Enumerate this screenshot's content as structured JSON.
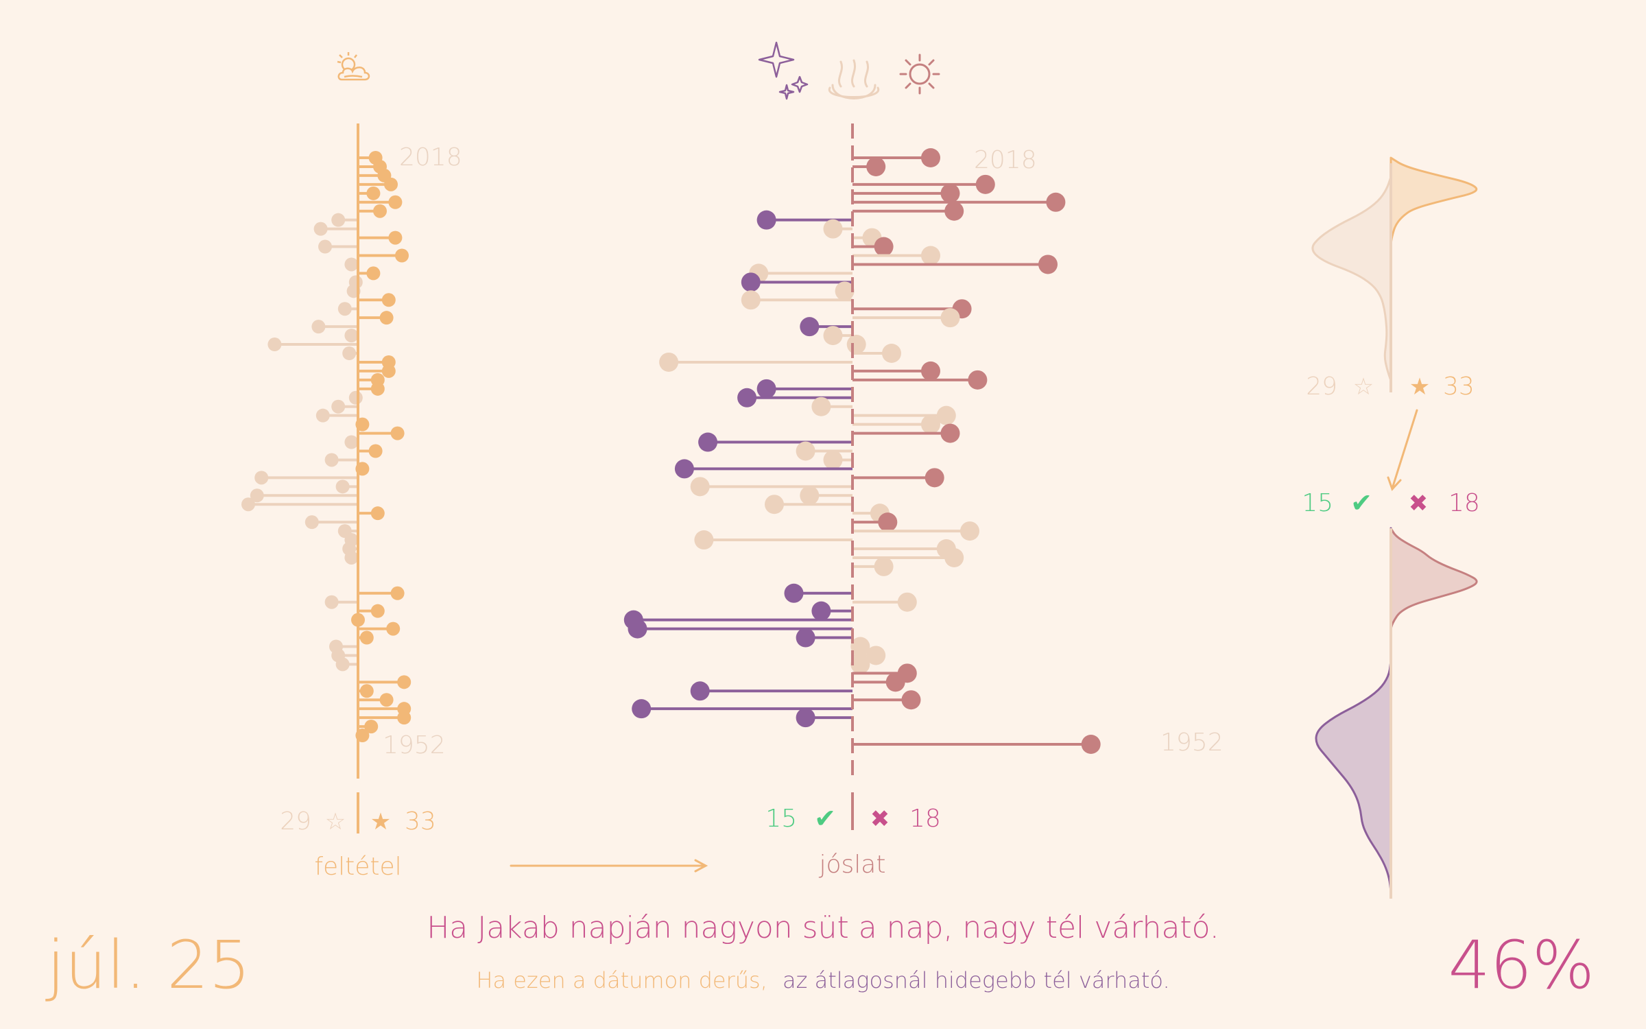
{
  "date_label": "júl. 25",
  "percent_label": "46%",
  "proverb": "Ha Jakab napján nagyon süt a nap, nagy tél várható.",
  "explanation": {
    "condition_part": "Ha ezen a dátumon derűs,",
    "prediction_part": "az átlagosnál hidegebb tél várható."
  },
  "colors": {
    "background": "#fdf3ea",
    "condition_active": "#f2b877",
    "inactive": "#ecd2bd",
    "year_label": "#e9d3c2",
    "prediction_cold": "#8c5f9a",
    "prediction_warm": "#c58080",
    "correct": "#4ecb82",
    "wrong": "#c8508c",
    "footer_condition": "#f2b877",
    "footer_prediction": "#8c5f9a",
    "title": "#c8508c"
  },
  "icons": {
    "condition_icon": "sun-behind-cloud-icon",
    "prediction_icons": [
      "sparkles-icon",
      "hot-spring-icon",
      "sun-icon"
    ]
  },
  "condition_panel": {
    "label": "feltétel",
    "year_top": "2018",
    "year_bottom": "1952",
    "count_not_met": "29",
    "count_met": "33",
    "star_empty": "☆",
    "star_filled": "★"
  },
  "prediction_panel": {
    "label": "jóslat",
    "year_top": "2018",
    "year_bottom": "1952",
    "count_correct": "15",
    "count_wrong": "18",
    "check_mark": "✔",
    "cross_mark": "✖"
  },
  "distribution_panel": {
    "count_not_met": "29",
    "count_met": "33",
    "star_empty": "☆",
    "star_filled": "★",
    "count_correct": "15",
    "count_wrong": "18",
    "check_mark": "✔",
    "cross_mark": "✖"
  },
  "chart_data": [
    {
      "type": "lollipop",
      "id": "condition",
      "x_unit": "deviation",
      "years_range": [
        1952,
        2018
      ],
      "points": [
        {
          "year": 2018,
          "value": 0.8,
          "met": true
        },
        {
          "year": 2017,
          "value": 1.0,
          "met": true
        },
        {
          "year": 2016,
          "value": 1.2,
          "met": true
        },
        {
          "year": 2015,
          "value": 1.5,
          "met": true
        },
        {
          "year": 2014,
          "value": 0.7,
          "met": true
        },
        {
          "year": 2013,
          "value": 1.7,
          "met": true
        },
        {
          "year": 2012,
          "value": 1.0,
          "met": true
        },
        {
          "year": 2011,
          "value": -0.9,
          "met": false
        },
        {
          "year": 2010,
          "value": -1.7,
          "met": false
        },
        {
          "year": 2009,
          "value": 1.7,
          "met": true
        },
        {
          "year": 2008,
          "value": -1.5,
          "met": false
        },
        {
          "year": 2007,
          "value": 2.0,
          "met": true
        },
        {
          "year": 2006,
          "value": -0.3,
          "met": false
        },
        {
          "year": 2005,
          "value": 0.7,
          "met": true
        },
        {
          "year": 2004,
          "value": -0.1,
          "met": false
        },
        {
          "year": 2003,
          "value": -0.2,
          "met": false
        },
        {
          "year": 2002,
          "value": 1.4,
          "met": true
        },
        {
          "year": 2001,
          "value": -0.6,
          "met": false
        },
        {
          "year": 2000,
          "value": 1.3,
          "met": true
        },
        {
          "year": 1999,
          "value": -1.8,
          "met": false
        },
        {
          "year": 1998,
          "value": -0.3,
          "met": false
        },
        {
          "year": 1997,
          "value": -3.8,
          "met": false
        },
        {
          "year": 1996,
          "value": -0.4,
          "met": false
        },
        {
          "year": 1995,
          "value": 1.4,
          "met": true
        },
        {
          "year": 1994,
          "value": 1.4,
          "met": true
        },
        {
          "year": 1993,
          "value": 0.9,
          "met": true
        },
        {
          "year": 1992,
          "value": 0.9,
          "met": true
        },
        {
          "year": 1991,
          "value": -0.1,
          "met": false
        },
        {
          "year": 1990,
          "value": -0.9,
          "met": false
        },
        {
          "year": 1989,
          "value": -1.6,
          "met": false
        },
        {
          "year": 1988,
          "value": 0.2,
          "met": true
        },
        {
          "year": 1987,
          "value": 1.8,
          "met": true
        },
        {
          "year": 1986,
          "value": -0.3,
          "met": false
        },
        {
          "year": 1985,
          "value": 0.8,
          "met": true
        },
        {
          "year": 1984,
          "value": -1.2,
          "met": false
        },
        {
          "year": 1983,
          "value": 0.2,
          "met": true
        },
        {
          "year": 1982,
          "value": -4.4,
          "met": false
        },
        {
          "year": 1981,
          "value": -0.7,
          "met": false
        },
        {
          "year": 1980,
          "value": -4.6,
          "met": false
        },
        {
          "year": 1979,
          "value": -5.0,
          "met": false
        },
        {
          "year": 1978,
          "value": 0.9,
          "met": true
        },
        {
          "year": 1977,
          "value": -2.1,
          "met": false
        },
        {
          "year": 1976,
          "value": -0.6,
          "met": false
        },
        {
          "year": 1975,
          "value": -0.3,
          "met": false
        },
        {
          "year": 1974,
          "value": -0.4,
          "met": false
        },
        {
          "year": 1973,
          "value": -0.3,
          "met": false
        },
        {
          "year": 1969,
          "value": 1.8,
          "met": true
        },
        {
          "year": 1968,
          "value": -1.2,
          "met": false
        },
        {
          "year": 1967,
          "value": 0.9,
          "met": true
        },
        {
          "year": 1966,
          "value": 0.0,
          "met": true
        },
        {
          "year": 1965,
          "value": 1.6,
          "met": true
        },
        {
          "year": 1964,
          "value": 0.4,
          "met": true
        },
        {
          "year": 1963,
          "value": -1.0,
          "met": false
        },
        {
          "year": 1962,
          "value": -0.9,
          "met": false
        },
        {
          "year": 1961,
          "value": -0.7,
          "met": false
        },
        {
          "year": 1959,
          "value": 2.1,
          "met": true
        },
        {
          "year": 1958,
          "value": 0.4,
          "met": true
        },
        {
          "year": 1957,
          "value": 1.3,
          "met": true
        },
        {
          "year": 1956,
          "value": 2.1,
          "met": true
        },
        {
          "year": 1955,
          "value": 2.1,
          "met": true
        },
        {
          "year": 1954,
          "value": 0.6,
          "met": true
        },
        {
          "year": 1953,
          "value": 0.2,
          "met": true
        }
      ]
    },
    {
      "type": "lollipop",
      "id": "prediction",
      "x_unit": "deviation",
      "years_range": [
        1952,
        2018
      ],
      "points": [
        {
          "year": 2018,
          "value": 2.0,
          "status": "warm"
        },
        {
          "year": 2017,
          "value": 0.6,
          "status": "warm"
        },
        {
          "year": 2015,
          "value": 3.4,
          "status": "warm"
        },
        {
          "year": 2014,
          "value": 2.5,
          "status": "warm"
        },
        {
          "year": 2013,
          "value": 5.2,
          "status": "warm"
        },
        {
          "year": 2012,
          "value": 2.6,
          "status": "warm"
        },
        {
          "year": 2011,
          "value": -2.2,
          "status": "cold"
        },
        {
          "year": 2010,
          "value": -0.5,
          "status": "inactive"
        },
        {
          "year": 2009,
          "value": 0.5,
          "status": "inactive"
        },
        {
          "year": 2008,
          "value": 0.8,
          "status": "warm"
        },
        {
          "year": 2007,
          "value": 2.0,
          "status": "inactive"
        },
        {
          "year": 2006,
          "value": 5.0,
          "status": "warm"
        },
        {
          "year": 2005,
          "value": -2.4,
          "status": "inactive"
        },
        {
          "year": 2004,
          "value": -2.6,
          "status": "cold"
        },
        {
          "year": 2003,
          "value": -0.2,
          "status": "inactive"
        },
        {
          "year": 2002,
          "value": -2.6,
          "status": "inactive"
        },
        {
          "year": 2001,
          "value": 2.8,
          "status": "warm"
        },
        {
          "year": 2000,
          "value": 2.5,
          "status": "inactive"
        },
        {
          "year": 1999,
          "value": -1.1,
          "status": "cold"
        },
        {
          "year": 1998,
          "value": -0.5,
          "status": "inactive"
        },
        {
          "year": 1997,
          "value": 0.1,
          "status": "inactive"
        },
        {
          "year": 1996,
          "value": 1.0,
          "status": "inactive"
        },
        {
          "year": 1995,
          "value": -4.7,
          "status": "inactive"
        },
        {
          "year": 1994,
          "value": 2.0,
          "status": "warm"
        },
        {
          "year": 1993,
          "value": 3.2,
          "status": "warm"
        },
        {
          "year": 1992,
          "value": -2.2,
          "status": "cold"
        },
        {
          "year": 1991,
          "value": -2.7,
          "status": "cold"
        },
        {
          "year": 1990,
          "value": -0.8,
          "status": "inactive"
        },
        {
          "year": 1989,
          "value": 2.4,
          "status": "inactive"
        },
        {
          "year": 1988,
          "value": 2.0,
          "status": "inactive"
        },
        {
          "year": 1987,
          "value": 2.5,
          "status": "warm"
        },
        {
          "year": 1986,
          "value": -3.7,
          "status": "cold"
        },
        {
          "year": 1985,
          "value": -1.2,
          "status": "inactive"
        },
        {
          "year": 1984,
          "value": -0.5,
          "status": "inactive"
        },
        {
          "year": 1983,
          "value": -4.3,
          "status": "cold"
        },
        {
          "year": 1982,
          "value": 2.1,
          "status": "warm"
        },
        {
          "year": 1981,
          "value": -3.9,
          "status": "inactive"
        },
        {
          "year": 1980,
          "value": -1.1,
          "status": "inactive"
        },
        {
          "year": 1979,
          "value": -2.0,
          "status": "inactive"
        },
        {
          "year": 1978,
          "value": 0.7,
          "status": "inactive"
        },
        {
          "year": 1977,
          "value": 0.9,
          "status": "warm"
        },
        {
          "year": 1976,
          "value": 3.0,
          "status": "inactive"
        },
        {
          "year": 1975,
          "value": -3.8,
          "status": "inactive"
        },
        {
          "year": 1974,
          "value": 2.4,
          "status": "inactive"
        },
        {
          "year": 1973,
          "value": 2.6,
          "status": "inactive"
        },
        {
          "year": 1972,
          "value": 0.8,
          "status": "inactive"
        },
        {
          "year": 1969,
          "value": -1.5,
          "status": "cold"
        },
        {
          "year": 1968,
          "value": 1.4,
          "status": "inactive"
        },
        {
          "year": 1967,
          "value": -0.8,
          "status": "cold"
        },
        {
          "year": 1966,
          "value": -5.6,
          "status": "cold"
        },
        {
          "year": 1965,
          "value": -5.5,
          "status": "cold"
        },
        {
          "year": 1964,
          "value": -1.2,
          "status": "cold"
        },
        {
          "year": 1963,
          "value": 0.2,
          "status": "inactive"
        },
        {
          "year": 1962,
          "value": 0.6,
          "status": "inactive"
        },
        {
          "year": 1961,
          "value": 0.2,
          "status": "inactive"
        },
        {
          "year": 1960,
          "value": 1.4,
          "status": "warm"
        },
        {
          "year": 1959,
          "value": 1.1,
          "status": "warm"
        },
        {
          "year": 1958,
          "value": -3.9,
          "status": "cold"
        },
        {
          "year": 1957,
          "value": 1.5,
          "status": "warm"
        },
        {
          "year": 1956,
          "value": -5.4,
          "status": "cold"
        },
        {
          "year": 1955,
          "value": -1.2,
          "status": "cold"
        },
        {
          "year": 1952,
          "value": 6.1,
          "status": "warm"
        }
      ]
    },
    {
      "type": "area",
      "id": "condition-distribution",
      "orientation": "vertical-split",
      "series": [
        {
          "side": "left",
          "color": "#ecd2bd",
          "values": [
            0,
            0.05,
            0.15,
            0.35,
            0.65,
            0.88,
            1.0,
            0.85,
            0.45,
            0.22,
            0.12,
            0.08,
            0.06,
            0.05,
            0.06,
            0.08,
            0.05,
            0.0
          ]
        },
        {
          "side": "right",
          "color": "#f2b877",
          "values": [
            0,
            0.15,
            0.5,
            0.9,
            1.0,
            0.6,
            0.25,
            0.12,
            0.05,
            0.02,
            0.0,
            0,
            0,
            0,
            0,
            0,
            0,
            0
          ]
        }
      ]
    },
    {
      "type": "area",
      "id": "prediction-distribution",
      "orientation": "vertical-split",
      "series": [
        {
          "side": "right",
          "color": "#c58080",
          "values": [
            0.0,
            0.05,
            0.18,
            0.35,
            0.45,
            0.62,
            0.85,
            1.0,
            0.85,
            0.55,
            0.25,
            0.1,
            0.04,
            0.0,
            0,
            0,
            0,
            0,
            0,
            0,
            0,
            0,
            0,
            0,
            0,
            0,
            0,
            0
          ]
        },
        {
          "side": "left",
          "color": "#8c5f9a",
          "values": [
            0,
            0,
            0,
            0,
            0,
            0,
            0,
            0,
            0,
            0,
            0,
            0.03,
            0.15,
            0.4,
            0.75,
            0.98,
            1.0,
            0.85,
            0.7,
            0.55,
            0.45,
            0.4,
            0.38,
            0.3,
            0.18,
            0.08,
            0.02,
            0.0
          ]
        }
      ]
    }
  ]
}
